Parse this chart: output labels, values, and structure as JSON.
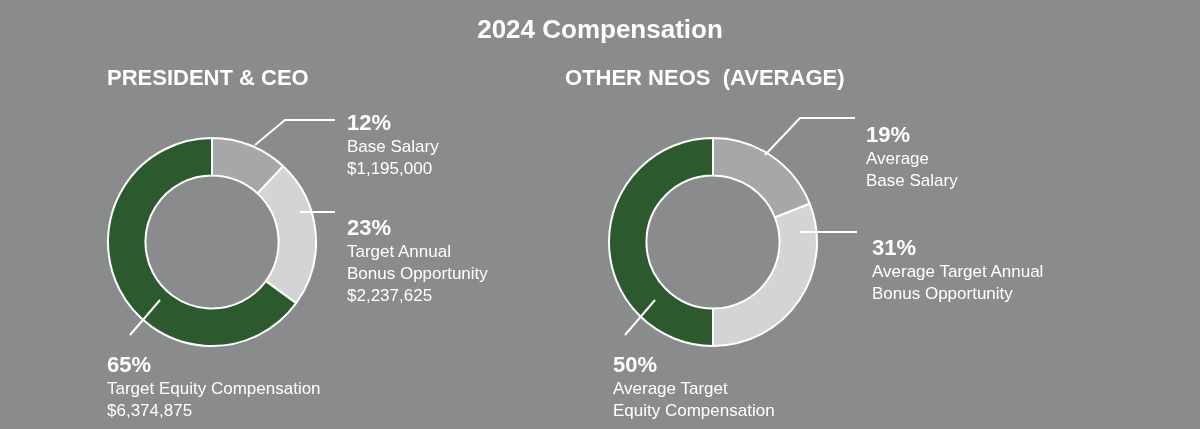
{
  "chart_data": [
    {
      "type": "donut",
      "title": "2024 Compensation",
      "subtitle": "PRESIDENT & CEO",
      "categories": [
        "Base Salary\n$1,195,000",
        "Target Annual\nBonus Opportunity\n$2,237,625",
        "Target Equity Compensation\n$6,374,875"
      ],
      "values": [
        12,
        23,
        65
      ],
      "value_labels": [
        "12%",
        "23%",
        "65%"
      ],
      "colors": [
        "#a6a7a9",
        "#d4d4d5",
        "#2c5a2e"
      ],
      "legend": false
    },
    {
      "type": "donut",
      "subtitle": "OTHER NEOS  (AVERAGE)",
      "categories": [
        "Average\nBase Salary",
        "Average Target Annual\nBonus Opportunity",
        "Average Target\nEquity Compensation"
      ],
      "values": [
        19,
        31,
        50
      ],
      "value_labels": [
        "19%",
        "31%",
        "50%"
      ],
      "colors": [
        "#a6a7a9",
        "#d4d4d5",
        "#2c5a2e"
      ],
      "legend": false
    }
  ]
}
